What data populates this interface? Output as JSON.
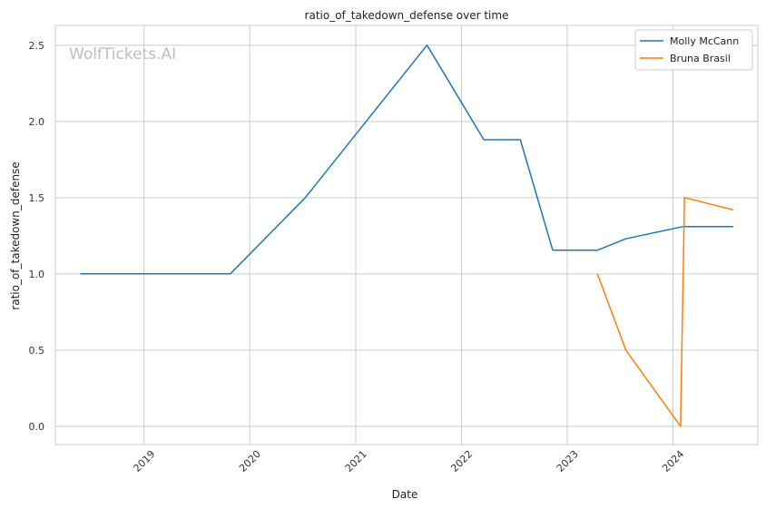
{
  "watermark": "WolfTickets.AI",
  "chart_data": {
    "type": "line",
    "title": "ratio_of_takedown_defense over time",
    "xlabel": "Date",
    "ylabel": "ratio_of_takedown_defense",
    "x_type": "date",
    "xlim": [
      "2018-03-01",
      "2024-10-20"
    ],
    "ylim": [
      -0.12,
      2.63
    ],
    "x_ticks": [
      "2019-01-01",
      "2020-01-01",
      "2021-01-01",
      "2022-01-01",
      "2023-01-01",
      "2024-01-01"
    ],
    "x_tick_labels": [
      "2019",
      "2020",
      "2021",
      "2022",
      "2023",
      "2024"
    ],
    "y_ticks": [
      0.0,
      0.5,
      1.0,
      1.5,
      2.0,
      2.5
    ],
    "y_tick_labels": [
      "0.0",
      "0.5",
      "1.0",
      "1.5",
      "2.0",
      "2.5"
    ],
    "grid": true,
    "legend_position": "top-right",
    "series": [
      {
        "name": "Molly McCann",
        "color": "#1f77b4",
        "points": [
          {
            "x": "2018-05-26",
            "y": 1.0
          },
          {
            "x": "2019-10-26",
            "y": 1.0
          },
          {
            "x": "2020-07-11",
            "y": 1.5
          },
          {
            "x": "2021-09-04",
            "y": 2.5
          },
          {
            "x": "2022-03-19",
            "y": 1.88
          },
          {
            "x": "2022-07-23",
            "y": 1.88
          },
          {
            "x": "2022-11-12",
            "y": 1.155
          },
          {
            "x": "2023-04-15",
            "y": 1.155
          },
          {
            "x": "2023-07-22",
            "y": 1.23
          },
          {
            "x": "2024-02-03",
            "y": 1.31
          },
          {
            "x": "2024-07-27",
            "y": 1.31
          }
        ]
      },
      {
        "name": "Bruna Brasil",
        "color": "#ff7f0e",
        "points": [
          {
            "x": "2023-04-15",
            "y": 1.0
          },
          {
            "x": "2023-07-22",
            "y": 0.5
          },
          {
            "x": "2024-01-27",
            "y": 0.0
          },
          {
            "x": "2024-02-10",
            "y": 1.5
          },
          {
            "x": "2024-07-27",
            "y": 1.42
          }
        ]
      }
    ]
  }
}
